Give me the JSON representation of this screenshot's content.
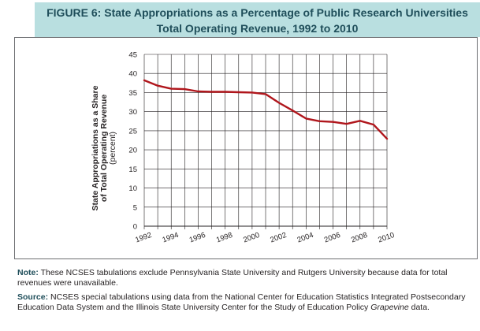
{
  "figure": {
    "title_line1": "FIGURE 6: State Appropriations as a Percentage of Public Research Universities",
    "title_line2": "Total Operating Revenue, 1992 to 2010"
  },
  "colors": {
    "line": "#b0161c",
    "title_bg": "#b9dfe0",
    "title_text": "#1f4e5a",
    "grid": "#231f20"
  },
  "chart_data": {
    "type": "line",
    "title": "FIGURE 6: State Appropriations as a Percentage of Public Research Universities Total Operating Revenue, 1992 to 2010",
    "ylabel_line1": "State Appropriations as a Share",
    "ylabel_line2": "of Total Operating Revenue",
    "ylabel_unit": "(percent)",
    "ylim": [
      0,
      45
    ],
    "yticks": [
      0,
      5,
      10,
      15,
      20,
      25,
      30,
      35,
      40,
      45
    ],
    "xticks": [
      "1992",
      "1994",
      "1996",
      "1998",
      "2000",
      "2002",
      "2004",
      "2006",
      "2008",
      "2010"
    ],
    "grid": true,
    "x": [
      1992,
      1993,
      1994,
      1995,
      1996,
      1997,
      1998,
      1999,
      2000,
      2001,
      2002,
      2003,
      2004,
      2005,
      2006,
      2007,
      2008,
      2009,
      2010
    ],
    "values": [
      38.2,
      36.8,
      36.0,
      35.9,
      35.3,
      35.2,
      35.2,
      35.1,
      35.0,
      34.6,
      32.3,
      30.3,
      28.2,
      27.5,
      27.3,
      26.8,
      27.6,
      26.6,
      22.9
    ]
  },
  "notes": {
    "note_label": "Note:",
    "note_text": " These NCSES tabulations exclude Pennsylvania State University and Rutgers University because data for total revenues were unavailable.",
    "source_label": "Source:",
    "source_text": " NCSES special tabulations using data from the National Center for Education Statistics Integrated Postsecondary Education Data System and the Illinois State University Center for the Study of Education Policy ",
    "source_italic": "Grapevine",
    "source_end": " data."
  }
}
